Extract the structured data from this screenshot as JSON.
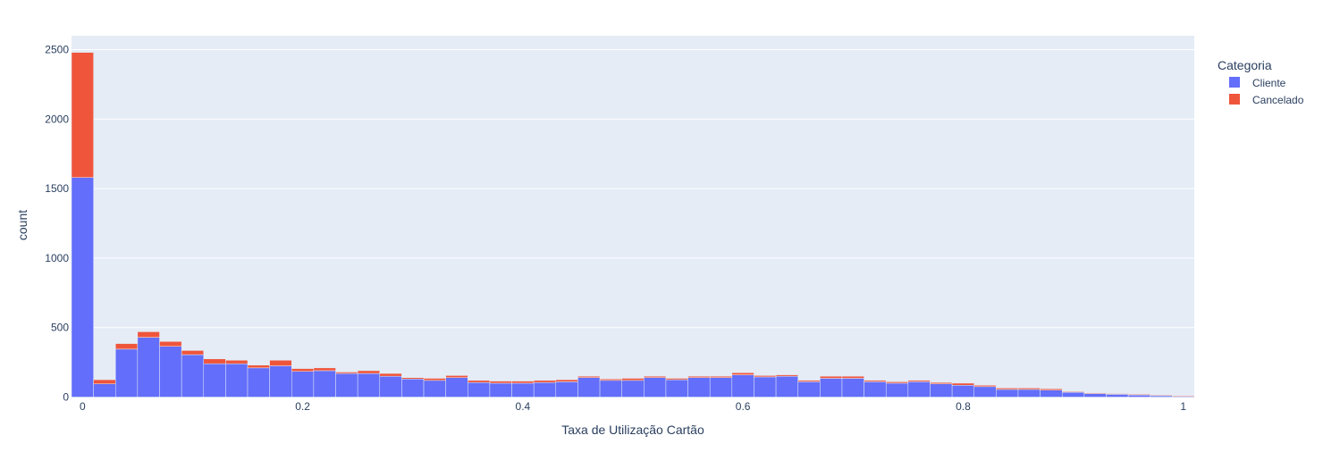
{
  "chart_data": {
    "type": "bar",
    "stacked": true,
    "xlabel": "Taxa de Utilização Cartão",
    "ylabel": "count",
    "xlim": [
      -0.01,
      1.01
    ],
    "ylim": [
      0,
      2600
    ],
    "bin_width": 0.02,
    "x_ticks": [
      0,
      0.2,
      0.4,
      0.6,
      0.8,
      1
    ],
    "x_tick_labels": [
      "0",
      "0.2",
      "0.4",
      "0.6",
      "0.8",
      "1"
    ],
    "y_ticks": [
      0,
      500,
      1000,
      1500,
      2000,
      2500
    ],
    "y_tick_labels": [
      "0",
      "500",
      "1000",
      "1500",
      "2000",
      "2500"
    ],
    "grid": true,
    "legend": {
      "title": "Categoria",
      "placement": "top-right"
    },
    "bin_starts": [
      -0.01,
      0.01,
      0.03,
      0.05,
      0.07,
      0.09,
      0.11,
      0.13,
      0.15,
      0.17,
      0.19,
      0.21,
      0.23,
      0.25,
      0.27,
      0.29,
      0.31,
      0.33,
      0.35,
      0.37,
      0.39,
      0.41,
      0.43,
      0.45,
      0.47,
      0.49,
      0.51,
      0.53,
      0.55,
      0.57,
      0.59,
      0.61,
      0.63,
      0.65,
      0.67,
      0.69,
      0.71,
      0.73,
      0.75,
      0.77,
      0.79,
      0.81,
      0.83,
      0.85,
      0.87,
      0.89,
      0.91,
      0.93,
      0.95,
      0.97,
      0.99
    ],
    "series": [
      {
        "name": "Cliente",
        "color": "#636efa",
        "values": [
          1580,
          95,
          345,
          430,
          365,
          305,
          240,
          240,
          210,
          225,
          185,
          190,
          170,
          170,
          150,
          130,
          120,
          140,
          105,
          100,
          100,
          105,
          110,
          140,
          120,
          120,
          140,
          125,
          140,
          140,
          160,
          145,
          150,
          110,
          135,
          135,
          110,
          100,
          110,
          95,
          85,
          75,
          55,
          55,
          50,
          35,
          25,
          20,
          15,
          10,
          5
        ]
      },
      {
        "name": "Cancelado",
        "color": "#ef553b",
        "values": [
          900,
          30,
          40,
          40,
          35,
          30,
          35,
          25,
          20,
          40,
          20,
          20,
          10,
          20,
          20,
          10,
          15,
          15,
          15,
          15,
          15,
          15,
          15,
          10,
          10,
          15,
          10,
          10,
          10,
          10,
          15,
          10,
          10,
          10,
          15,
          15,
          10,
          10,
          10,
          10,
          15,
          10,
          10,
          10,
          10,
          5,
          5,
          5,
          5,
          5,
          5
        ]
      }
    ]
  }
}
